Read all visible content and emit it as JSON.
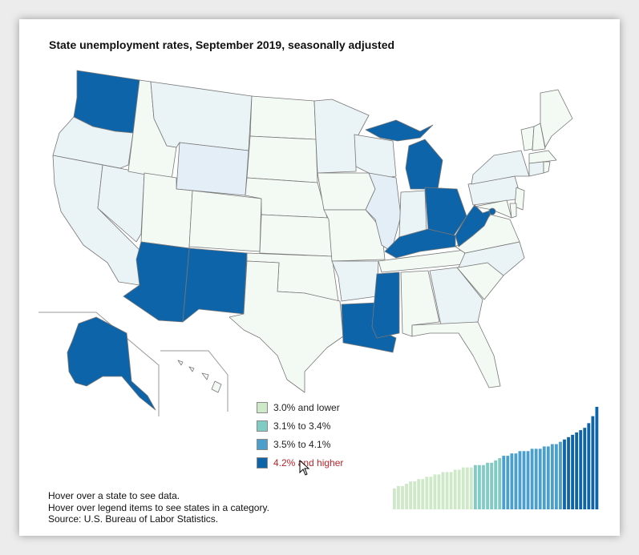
{
  "title": "State unemployment rates, September 2019, seasonally adjusted",
  "legend": [
    {
      "label": "3.0% and lower",
      "color": "#cde9c7"
    },
    {
      "label": "3.1% to 3.4%",
      "color": "#7fccc5"
    },
    {
      "label": "3.5% to 4.1%",
      "color": "#4a9fcc"
    },
    {
      "label": "4.2% and higher",
      "color": "#0e64a8"
    }
  ],
  "hovered_legend_index": 3,
  "notes": [
    "Hover over a state to see data.",
    "Hover over legend items to see states in a category.",
    "Source: U.S. Bureau of Labor Statistics."
  ],
  "colors": {
    "highlight": "#0e64a8",
    "dimmed_light": "#f3f9f3",
    "dimmed_mid": "#eaf3f6",
    "dimmed_blue": "#e4eef7",
    "hover_text": "#b8252c"
  },
  "chart_data": {
    "type": "bar",
    "description_of_values": "state unemployment rates sorted ascending, percent",
    "values": [
      2.1,
      2.2,
      2.2,
      2.3,
      2.4,
      2.4,
      2.5,
      2.5,
      2.6,
      2.6,
      2.7,
      2.7,
      2.8,
      2.8,
      2.8,
      2.9,
      2.9,
      3.0,
      3.0,
      3.0,
      3.1,
      3.1,
      3.1,
      3.2,
      3.2,
      3.3,
      3.4,
      3.5,
      3.5,
      3.6,
      3.6,
      3.7,
      3.7,
      3.7,
      3.8,
      3.8,
      3.8,
      3.9,
      3.9,
      4.0,
      4.0,
      4.1,
      4.2,
      4.3,
      4.4,
      4.5,
      4.6,
      4.7,
      4.9,
      5.2,
      5.6
    ]
  }
}
